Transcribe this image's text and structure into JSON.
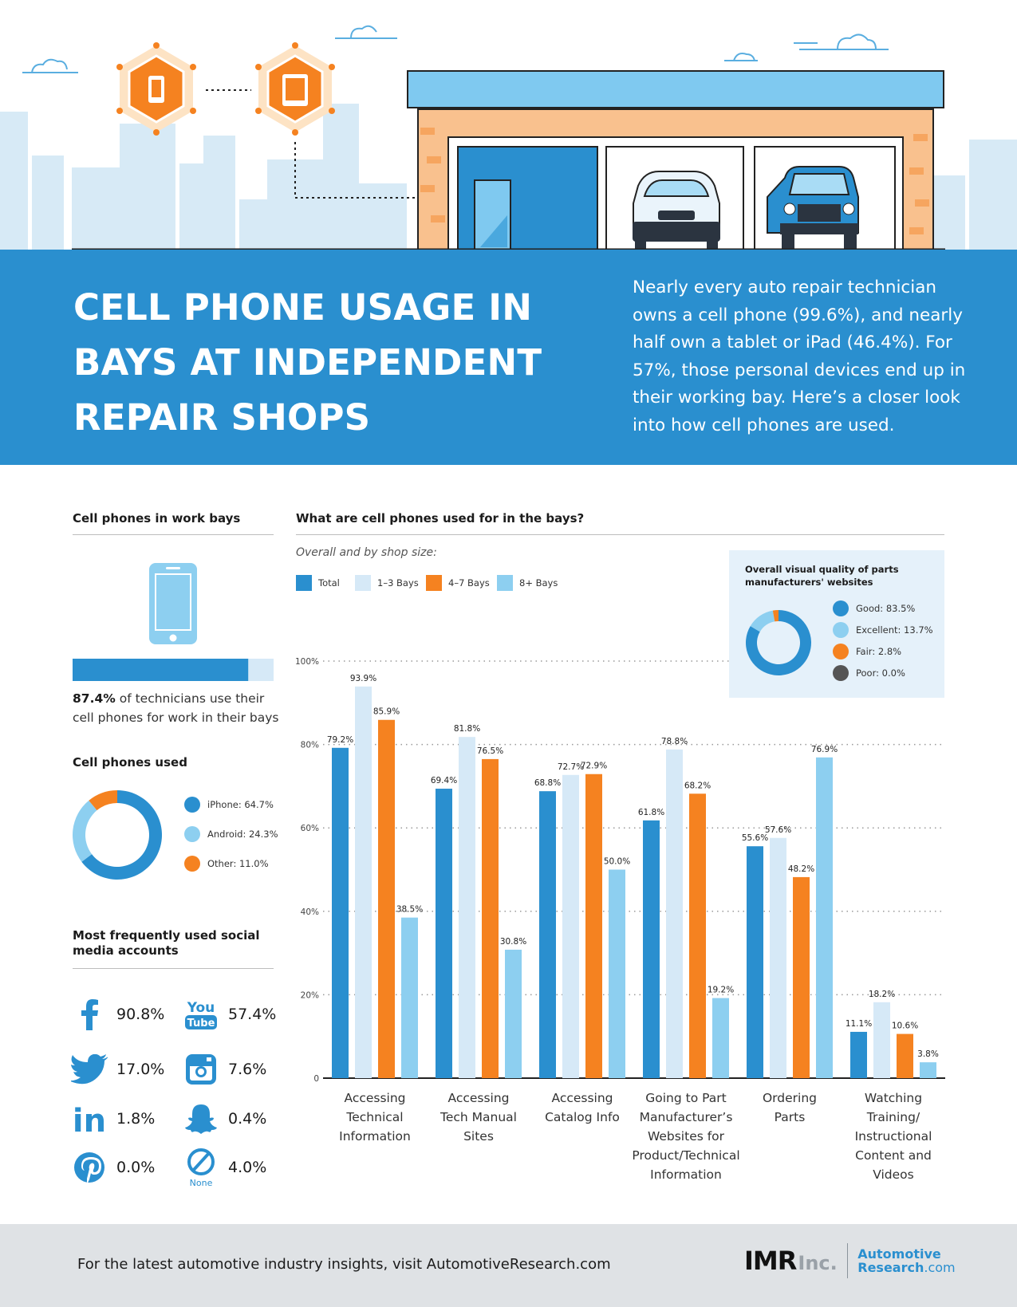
{
  "header": {
    "title": "CELL PHONE USAGE IN BAYS AT INDEPENDENT REPAIR SHOPS",
    "intro": "Nearly every auto repair technician owns a cell phone (99.6%), and nearly half own a tablet or iPad (46.4%). For 57%, those personal devices end up in their working bay. Here’s a closer look into how cell phones are used."
  },
  "work_bays": {
    "heading": "Cell phones in work bays",
    "value_label": "87.4%",
    "value": 87.4,
    "caption": "of technicians use their cell phones for work in their bays"
  },
  "phones_used": {
    "heading": "Cell phones used",
    "slices": [
      {
        "label": "iPhone: 64.7%",
        "value": 64.7,
        "color": "#2a8fcf"
      },
      {
        "label": "Android: 24.3%",
        "value": 24.3,
        "color": "#8dcff0"
      },
      {
        "label": "Other: 11.0%",
        "value": 11.0,
        "color": "#f58220"
      }
    ]
  },
  "social": {
    "heading": "Most frequently used social media accounts",
    "items": [
      {
        "icon": "facebook-icon",
        "value": "90.8%"
      },
      {
        "icon": "youtube-icon",
        "value": "57.4%",
        "icon_text": "You",
        "icon_text2": "Tube"
      },
      {
        "icon": "twitter-icon",
        "value": "17.0%"
      },
      {
        "icon": "instagram-icon",
        "value": "7.6%"
      },
      {
        "icon": "linkedin-icon",
        "value": "1.8%",
        "icon_text": "in"
      },
      {
        "icon": "snapchat-icon",
        "value": "0.4%"
      },
      {
        "icon": "pinterest-icon",
        "value": "0.0%"
      },
      {
        "icon": "none-icon",
        "value": "4.0%",
        "icon_text": "None"
      }
    ]
  },
  "main_chart": {
    "heading": "What are cell phones used for in the bays?",
    "subtitle": "Overall and by shop size:"
  },
  "quality": {
    "title": "Overall visual quality of parts manufacturers' websites",
    "slices": [
      {
        "label": "Good: 83.5%",
        "value": 83.5,
        "color": "#2a8fcf"
      },
      {
        "label": "Excellent: 13.7%",
        "value": 13.7,
        "color": "#8dcff0"
      },
      {
        "label": "Fair: 2.8%",
        "value": 2.8,
        "color": "#f58220"
      },
      {
        "label": "Poor: 0.0%",
        "value": 0.0,
        "color": "#555555"
      }
    ]
  },
  "chart_data": {
    "type": "bar",
    "title": "What are cell phones used for in the bays?",
    "subtitle": "Overall and by shop size:",
    "categories": [
      "Accessing Technical Information",
      "Accessing Tech Manual Sites",
      "Accessing Catalog Info",
      "Going to Part Manufacturer’s Websites for Product/Technical Information",
      "Ordering Parts",
      "Watching Training/ Instructional Content and Videos"
    ],
    "category_lines": [
      [
        "Accessing",
        "Technical",
        "Information"
      ],
      [
        "Accessing",
        "Tech Manual",
        "Sites"
      ],
      [
        "Accessing",
        "Catalog Info"
      ],
      [
        "Going to Part",
        "Manufacturer’s",
        "Websites for",
        "Product/Technical",
        "Information"
      ],
      [
        "Ordering",
        "Parts"
      ],
      [
        "Watching",
        "Training/",
        "Instructional",
        "Content and",
        "Videos"
      ]
    ],
    "series": [
      {
        "name": "Total",
        "color": "#2a8fcf",
        "values": [
          79.2,
          69.4,
          68.8,
          61.8,
          55.6,
          11.1
        ],
        "labels": [
          "79.2%",
          "69.4%",
          "68.8%",
          "61.8%",
          "55.6%",
          "11.1%"
        ]
      },
      {
        "name": "1–3 Bays",
        "color": "#d6e9f7",
        "values": [
          93.9,
          81.8,
          72.7,
          78.8,
          57.6,
          18.2
        ],
        "labels": [
          "93.9%",
          "81.8%",
          "72.7%",
          "78.8%",
          "57.6%",
          "18.2%"
        ]
      },
      {
        "name": "4–7 Bays",
        "color": "#f58220",
        "values": [
          85.9,
          76.5,
          72.9,
          68.2,
          48.2,
          10.6
        ],
        "labels": [
          "85.9%",
          "76.5%",
          "72.9%",
          "68.2%",
          "48.2%",
          "10.6%"
        ]
      },
      {
        "name": "8+ Bays",
        "color": "#8dcff0",
        "values": [
          38.5,
          30.8,
          50.0,
          19.2,
          76.9,
          3.8
        ],
        "labels": [
          "38.5%",
          "30.8%",
          "50.0%",
          "19.2%",
          "76.9%",
          "3.8%"
        ]
      }
    ],
    "ylim": [
      0,
      100
    ],
    "yticks": [
      "0",
      "20%",
      "40%",
      "60%",
      "80%",
      "100%"
    ],
    "ytick_values": [
      0,
      20,
      40,
      60,
      80,
      100
    ],
    "grid": true,
    "legend": "top-left"
  },
  "footer": {
    "text": "For the latest automotive industry insights, visit AutomotiveResearch.com",
    "logo_main": "IMR",
    "logo_inc": "Inc.",
    "logo_ar1": "Automotive",
    "logo_ar2": "Research",
    "logo_ar3": ".com"
  }
}
